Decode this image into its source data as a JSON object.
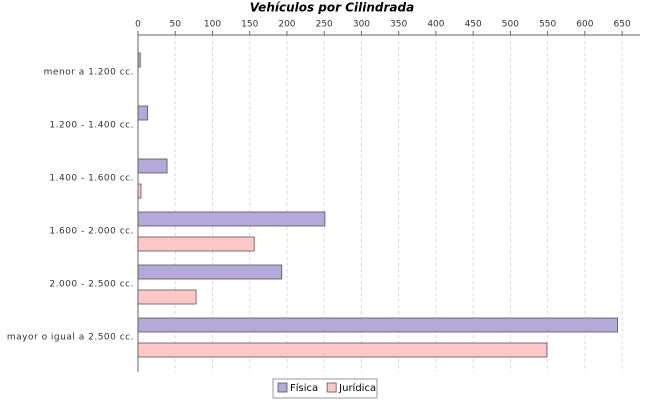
{
  "chart_data": {
    "type": "hbar",
    "title": "Vehículos por Cilindrada",
    "categories": [
      "menor a 1.200 cc.",
      "1.200 - 1.400 cc.",
      "1.400 - 1.600 cc.",
      "1.600 - 2.000 cc.",
      "2.000 - 2.500 cc.",
      "mayor o igual a 2.500 cc."
    ],
    "series": [
      {
        "name": "Física",
        "color": "#b4a9d8",
        "values": [
          3,
          13,
          39,
          251,
          193,
          644
        ]
      },
      {
        "name": "Jurídica",
        "color": "#ffc8c8",
        "values": [
          0,
          0,
          4,
          156,
          78,
          549
        ]
      }
    ],
    "xlim": [
      0,
      674
    ],
    "xticks": [
      0,
      50,
      100,
      150,
      200,
      250,
      300,
      350,
      400,
      450,
      500,
      550,
      600,
      650
    ],
    "grid": true
  }
}
